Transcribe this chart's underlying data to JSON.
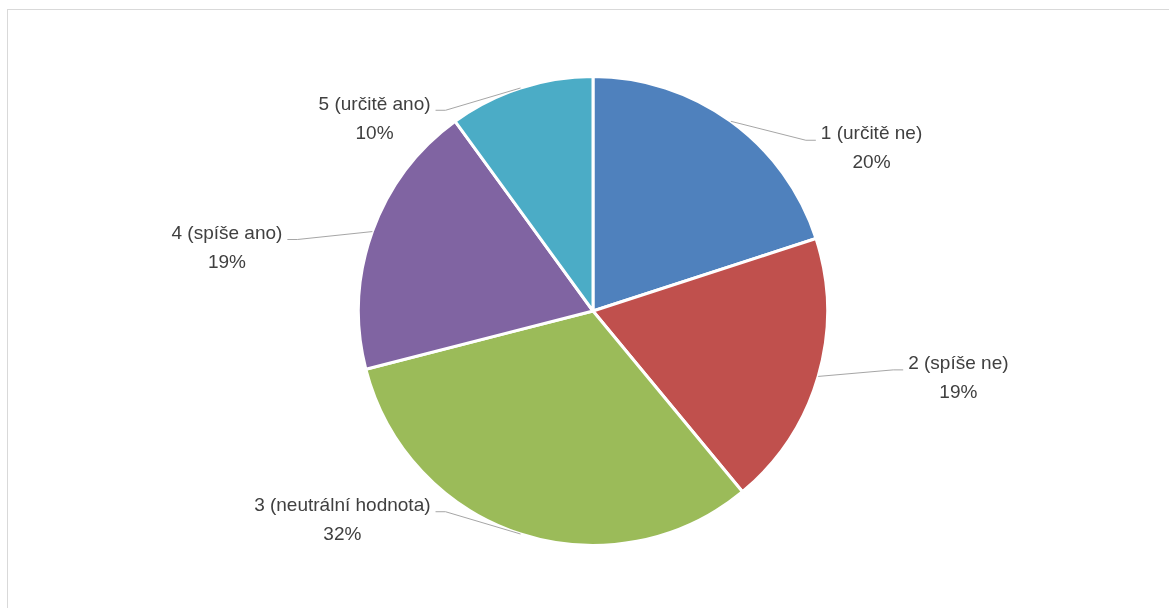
{
  "chart_data": {
    "type": "pie",
    "categories": [
      "1 (určitě ne)",
      "2 (spíše ne)",
      "3 (neutrální hodnota)",
      "4 (spíše ano)",
      "5 (určitě ano)"
    ],
    "values": [
      20,
      19,
      32,
      19,
      10
    ],
    "colors": [
      "#4f81bd",
      "#c0504d",
      "#9bbb59",
      "#8064a2",
      "#4bacc6"
    ],
    "value_labels": [
      "20%",
      "19%",
      "32%",
      "19%",
      "10%"
    ]
  }
}
